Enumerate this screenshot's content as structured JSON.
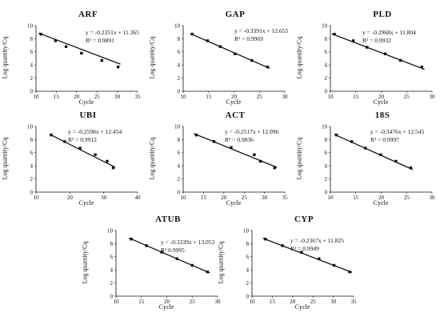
{
  "chart_data": [
    {
      "type": "scatter",
      "title": "ARF",
      "xlabel": "Cycle",
      "ylabel": "Log quantity/Cq",
      "xlim": [
        10,
        35
      ],
      "ylim": [
        0,
        10
      ],
      "xticks": [
        10,
        15,
        20,
        25,
        30,
        35
      ],
      "yticks": [
        0,
        2,
        4,
        6,
        8,
        10
      ],
      "equation": "y = -0.2351x + 11.365",
      "r2": "R² = 0.9891",
      "x": [
        11.2,
        14.8,
        17.4,
        21.2,
        26.2,
        30.2
      ],
      "y": [
        8.7,
        7.7,
        6.8,
        5.8,
        4.7,
        3.7
      ],
      "slope": -0.2351,
      "intercept": 11.365,
      "grid": false
    },
    {
      "type": "scatter",
      "title": "GAP",
      "xlabel": "Cycle",
      "ylabel": "Log quantity/Cq",
      "xlim": [
        10,
        30
      ],
      "ylim": [
        0,
        10
      ],
      "xticks": [
        10,
        15,
        20,
        25,
        30
      ],
      "yticks": [
        0,
        2,
        4,
        6,
        8,
        10
      ],
      "equation": "y = -0.3391x + 12.655",
      "r2": "R² = 0.9969",
      "x": [
        11.8,
        14.8,
        17.3,
        20.2,
        23.5,
        26.6
      ],
      "y": [
        8.7,
        7.7,
        6.8,
        5.7,
        4.7,
        3.7
      ],
      "slope": -0.3391,
      "intercept": 12.655,
      "grid": false
    },
    {
      "type": "scatter",
      "title": "PLD",
      "xlabel": "Cycle",
      "ylabel": "Log quantity/Cq",
      "xlim": [
        10,
        30
      ],
      "ylim": [
        0,
        10
      ],
      "xticks": [
        10,
        15,
        20,
        25,
        30
      ],
      "yticks": [
        0,
        2,
        4,
        6,
        8,
        10
      ],
      "equation": "y = -0.2968x + 11.804",
      "r2": "R² = 0.9932",
      "x": [
        10.8,
        14.5,
        17.2,
        20.8,
        23.8,
        28.0
      ],
      "y": [
        8.7,
        7.7,
        6.7,
        5.7,
        4.7,
        3.7
      ],
      "slope": -0.2968,
      "intercept": 11.804,
      "grid": false
    },
    {
      "type": "scatter",
      "title": "UBI",
      "xlabel": "Cycle",
      "ylabel": "Log quantity/Cq",
      "xlim": [
        10,
        40
      ],
      "ylim": [
        0,
        10
      ],
      "xticks": [
        10,
        20,
        30,
        40
      ],
      "yticks": [
        0,
        2,
        4,
        6,
        8,
        10
      ],
      "equation": "y = -0.2598x + 12.454",
      "r2": "R² = 0.9912",
      "x": [
        14.5,
        18.5,
        23.0,
        27.5,
        31.0,
        32.8
      ],
      "y": [
        8.7,
        7.7,
        6.7,
        5.7,
        4.7,
        3.7
      ],
      "slope": -0.2598,
      "intercept": 12.454,
      "grid": false
    },
    {
      "type": "scatter",
      "title": "ACT",
      "xlabel": "Cycle",
      "ylabel": "Log quantity/Cq",
      "xlim": [
        10,
        35
      ],
      "ylim": [
        0,
        10
      ],
      "xticks": [
        10,
        15,
        20,
        25,
        30,
        35
      ],
      "yticks": [
        0,
        2,
        4,
        6,
        8,
        10
      ],
      "equation": "y = -0.2517x + 12.096",
      "r2": "R² = 0.9836",
      "x": [
        13.2,
        17.6,
        21.8,
        27.5,
        29.0,
        32.5
      ],
      "y": [
        8.7,
        7.7,
        6.8,
        5.7,
        4.7,
        3.7
      ],
      "slope": -0.2517,
      "intercept": 12.096,
      "grid": false
    },
    {
      "type": "scatter",
      "title": "18S",
      "xlabel": "Cycle",
      "ylabel": "Log quantity/Cq",
      "xlim": [
        10,
        30
      ],
      "ylim": [
        0,
        10
      ],
      "xticks": [
        10,
        15,
        20,
        25,
        30
      ],
      "yticks": [
        0,
        2,
        4,
        6,
        8,
        10
      ],
      "equation": "y = -0.3476x + 12.545",
      "r2": "R² = 0.9997",
      "x": [
        11.2,
        14.2,
        16.9,
        19.9,
        22.9,
        25.8
      ],
      "y": [
        8.7,
        7.7,
        6.7,
        5.7,
        4.7,
        3.7
      ],
      "slope": -0.3476,
      "intercept": 12.545,
      "grid": false
    },
    {
      "type": "scatter",
      "title": "ATUB",
      "xlabel": "Cycle",
      "ylabel": "Log quantity/Cq",
      "xlim": [
        10,
        30
      ],
      "ylim": [
        0,
        10
      ],
      "xticks": [
        10,
        15,
        20,
        25,
        30
      ],
      "yticks": [
        0,
        2,
        4,
        6,
        8,
        10
      ],
      "equation": "y = -0.3339x + 13.053",
      "r2": "R²   0.9995",
      "x": [
        13.0,
        16.0,
        19.0,
        22.0,
        25.0,
        28.0
      ],
      "y": [
        8.7,
        7.7,
        6.7,
        5.7,
        4.7,
        3.7
      ],
      "slope": -0.3339,
      "intercept": 13.053,
      "grid": false
    },
    {
      "type": "scatter",
      "title": "CYP",
      "xlabel": "Cycle",
      "ylabel": "Log quantity/Cq",
      "xlim": [
        10,
        35
      ],
      "ylim": [
        0,
        10
      ],
      "xticks": [
        10,
        15,
        20,
        25,
        30,
        35
      ],
      "yticks": [
        0,
        2,
        4,
        6,
        8,
        10
      ],
      "equation": "y = -0.2367x + 11.825",
      "r2": "R² = 0.9949",
      "x": [
        13.3,
        17.5,
        22.2,
        26.5,
        30.2,
        34.0
      ],
      "y": [
        8.7,
        7.7,
        6.7,
        5.7,
        4.7,
        3.7
      ],
      "slope": -0.2367,
      "intercept": 11.825,
      "grid": false
    }
  ],
  "style": {
    "marker_color": "#111111",
    "line_color": "#111111",
    "background": "#ffffff"
  }
}
